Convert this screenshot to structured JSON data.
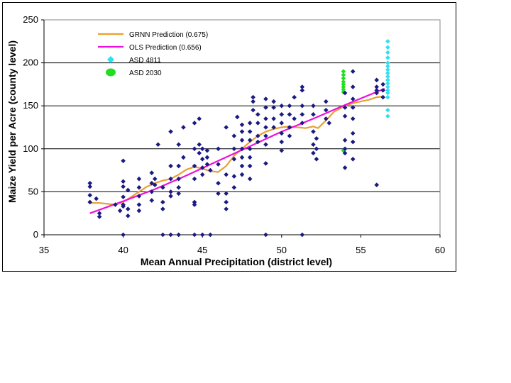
{
  "chart_data": {
    "type": "scatter",
    "title": "",
    "xlabel": "Mean Annual Precipitation (district level)",
    "ylabel": "Maize Yield per Acre (county level)",
    "xlim": [
      35,
      60
    ],
    "ylim": [
      0,
      250
    ],
    "xticks": [
      35,
      40,
      45,
      50,
      55,
      60
    ],
    "yticks": [
      0,
      50,
      100,
      150,
      200,
      250
    ],
    "grid": "horizontal",
    "legend_position": "top-left",
    "series": [
      {
        "name": "GRNN Prediction (0.675)",
        "kind": "line",
        "color": "#e8a030",
        "points": [
          [
            37.9,
            37
          ],
          [
            38.5,
            37
          ],
          [
            39,
            36
          ],
          [
            39.5,
            35
          ],
          [
            40,
            38
          ],
          [
            40.5,
            44
          ],
          [
            41,
            50
          ],
          [
            41.5,
            56
          ],
          [
            42,
            60
          ],
          [
            42.5,
            63
          ],
          [
            43,
            65
          ],
          [
            43.5,
            70
          ],
          [
            44,
            76
          ],
          [
            44.5,
            79
          ],
          [
            45,
            77
          ],
          [
            45.5,
            74
          ],
          [
            46,
            73
          ],
          [
            46.5,
            80
          ],
          [
            47,
            92
          ],
          [
            47.5,
            100
          ],
          [
            48,
            108
          ],
          [
            48.5,
            115
          ],
          [
            49,
            120
          ],
          [
            49.5,
            123
          ],
          [
            50,
            125
          ],
          [
            50.5,
            126
          ],
          [
            51,
            125
          ],
          [
            51.5,
            124
          ],
          [
            52,
            126
          ],
          [
            52.3,
            124
          ],
          [
            52.8,
            133
          ],
          [
            53.3,
            143
          ],
          [
            54,
            150
          ],
          [
            54.5,
            153
          ],
          [
            55,
            155
          ],
          [
            55.5,
            157
          ],
          [
            56,
            160
          ],
          [
            56.4,
            161
          ]
        ]
      },
      {
        "name": "OLS Prediction (0.656)",
        "kind": "line",
        "color": "#ee10dd",
        "points": [
          [
            37.9,
            25
          ],
          [
            40,
            39
          ],
          [
            42,
            53
          ],
          [
            44,
            69
          ],
          [
            46,
            86
          ],
          [
            48,
            103
          ],
          [
            50,
            120
          ],
          [
            52,
            135
          ],
          [
            54,
            151
          ],
          [
            56.5,
            170
          ]
        ]
      },
      {
        "name": "ASD 4811",
        "kind": "marker",
        "color": "#30e0f0",
        "points": [
          [
            56.7,
            225
          ],
          [
            56.7,
            218
          ],
          [
            56.7,
            212
          ],
          [
            56.7,
            206
          ],
          [
            56.7,
            200
          ],
          [
            56.7,
            196
          ],
          [
            56.7,
            192
          ],
          [
            56.7,
            188
          ],
          [
            56.7,
            184
          ],
          [
            56.7,
            180
          ],
          [
            56.7,
            176
          ],
          [
            56.7,
            172
          ],
          [
            56.7,
            168
          ],
          [
            56.7,
            165
          ],
          [
            56.7,
            160
          ],
          [
            56.7,
            145
          ],
          [
            56.7,
            138
          ]
        ]
      },
      {
        "name": "ASD 2030",
        "kind": "marker",
        "color": "#22dd22",
        "points": [
          [
            53.9,
            190
          ],
          [
            53.9,
            186
          ],
          [
            53.9,
            182
          ],
          [
            53.9,
            178
          ],
          [
            53.9,
            175
          ],
          [
            53.9,
            172
          ],
          [
            53.9,
            169
          ],
          [
            53.9,
            166
          ],
          [
            53.9,
            98
          ]
        ]
      },
      {
        "name": "",
        "kind": "marker",
        "color": "#1a1a80",
        "points": [
          [
            37.9,
            60
          ],
          [
            37.9,
            56
          ],
          [
            37.9,
            46
          ],
          [
            37.9,
            38
          ],
          [
            38.3,
            42
          ],
          [
            38.5,
            25
          ],
          [
            38.5,
            21
          ],
          [
            39.5,
            35
          ],
          [
            39.8,
            28
          ],
          [
            40,
            86
          ],
          [
            40,
            62
          ],
          [
            40,
            56
          ],
          [
            40,
            44
          ],
          [
            40,
            35
          ],
          [
            40,
            33
          ],
          [
            40,
            0
          ],
          [
            40.3,
            52
          ],
          [
            40.3,
            30
          ],
          [
            40.3,
            22
          ],
          [
            41,
            65
          ],
          [
            41,
            55
          ],
          [
            41,
            45
          ],
          [
            41,
            35
          ],
          [
            41,
            28
          ],
          [
            41.8,
            72
          ],
          [
            41.8,
            60
          ],
          [
            41.8,
            50
          ],
          [
            41.8,
            40
          ],
          [
            42,
            65
          ],
          [
            42,
            58
          ],
          [
            42.2,
            105
          ],
          [
            42.5,
            55
          ],
          [
            42.5,
            38
          ],
          [
            42.5,
            30
          ],
          [
            42.5,
            0
          ],
          [
            43,
            120
          ],
          [
            43,
            80
          ],
          [
            43,
            65
          ],
          [
            43,
            50
          ],
          [
            43,
            45
          ],
          [
            43,
            0
          ],
          [
            43.5,
            105
          ],
          [
            43.5,
            80
          ],
          [
            43.5,
            65
          ],
          [
            43.5,
            55
          ],
          [
            43.5,
            48
          ],
          [
            43.5,
            0
          ],
          [
            43.8,
            125
          ],
          [
            43.8,
            90
          ],
          [
            44.5,
            130
          ],
          [
            44.5,
            100
          ],
          [
            44.5,
            80
          ],
          [
            44.5,
            65
          ],
          [
            44.5,
            38
          ],
          [
            44.5,
            35
          ],
          [
            44.5,
            0
          ],
          [
            44.8,
            135
          ],
          [
            44.8,
            105
          ],
          [
            44.8,
            95
          ],
          [
            45,
            100
          ],
          [
            45,
            88
          ],
          [
            45,
            78
          ],
          [
            45,
            70
          ],
          [
            45,
            0
          ],
          [
            45.3,
            98
          ],
          [
            45.3,
            90
          ],
          [
            45.3,
            82
          ],
          [
            45.5,
            75
          ],
          [
            45.5,
            0
          ],
          [
            46,
            100
          ],
          [
            46,
            82
          ],
          [
            46,
            60
          ],
          [
            46,
            48
          ],
          [
            46.5,
            125
          ],
          [
            46.5,
            70
          ],
          [
            46.5,
            48
          ],
          [
            46.5,
            38
          ],
          [
            46.5,
            30
          ],
          [
            47,
            115
          ],
          [
            47,
            100
          ],
          [
            47,
            88
          ],
          [
            47,
            68
          ],
          [
            47,
            55
          ],
          [
            47.2,
            137
          ],
          [
            47.5,
            128
          ],
          [
            47.5,
            120
          ],
          [
            47.5,
            110
          ],
          [
            47.5,
            100
          ],
          [
            47.5,
            90
          ],
          [
            47.5,
            80
          ],
          [
            47.5,
            70
          ],
          [
            48,
            130
          ],
          [
            48,
            120
          ],
          [
            48,
            110
          ],
          [
            48,
            100
          ],
          [
            48,
            90
          ],
          [
            48,
            80
          ],
          [
            48,
            65
          ],
          [
            48.2,
            160
          ],
          [
            48.2,
            155
          ],
          [
            48.2,
            145
          ],
          [
            48.5,
            140
          ],
          [
            48.5,
            130
          ],
          [
            48.5,
            115
          ],
          [
            48.5,
            108
          ],
          [
            49,
            158
          ],
          [
            49,
            148
          ],
          [
            49,
            135
          ],
          [
            49,
            125
          ],
          [
            49,
            115
          ],
          [
            49,
            105
          ],
          [
            49,
            83
          ],
          [
            49,
            0
          ],
          [
            49.5,
            155
          ],
          [
            49.5,
            148
          ],
          [
            49.5,
            135
          ],
          [
            49.5,
            125
          ],
          [
            50,
            150
          ],
          [
            50,
            140
          ],
          [
            50,
            130
          ],
          [
            50,
            118
          ],
          [
            50,
            108
          ],
          [
            50,
            98
          ],
          [
            50.5,
            150
          ],
          [
            50.5,
            140
          ],
          [
            50.5,
            125
          ],
          [
            50.5,
            115
          ],
          [
            50.8,
            160
          ],
          [
            50.8,
            135
          ],
          [
            51.3,
            172
          ],
          [
            51.3,
            168
          ],
          [
            51.3,
            150
          ],
          [
            51.3,
            140
          ],
          [
            51.3,
            130
          ],
          [
            51.3,
            0
          ],
          [
            52,
            150
          ],
          [
            52,
            140
          ],
          [
            52,
            120
          ],
          [
            52,
            105
          ],
          [
            52,
            95
          ],
          [
            52.2,
            112
          ],
          [
            52.2,
            100
          ],
          [
            52.2,
            88
          ],
          [
            52.8,
            155
          ],
          [
            52.8,
            145
          ],
          [
            52.8,
            135
          ],
          [
            53,
            130
          ],
          [
            54,
            165
          ],
          [
            54,
            148
          ],
          [
            54,
            138
          ],
          [
            54,
            110
          ],
          [
            54,
            100
          ],
          [
            54,
            95
          ],
          [
            54,
            78
          ],
          [
            54.5,
            190
          ],
          [
            54.5,
            172
          ],
          [
            54.5,
            158
          ],
          [
            54.5,
            148
          ],
          [
            54.5,
            135
          ],
          [
            54.5,
            118
          ],
          [
            54.5,
            108
          ],
          [
            54.5,
            88
          ],
          [
            56,
            180
          ],
          [
            56,
            172
          ],
          [
            56,
            168
          ],
          [
            56,
            165
          ],
          [
            56,
            58
          ],
          [
            56.4,
            175
          ],
          [
            56.4,
            168
          ],
          [
            56.4,
            160
          ]
        ]
      }
    ]
  }
}
